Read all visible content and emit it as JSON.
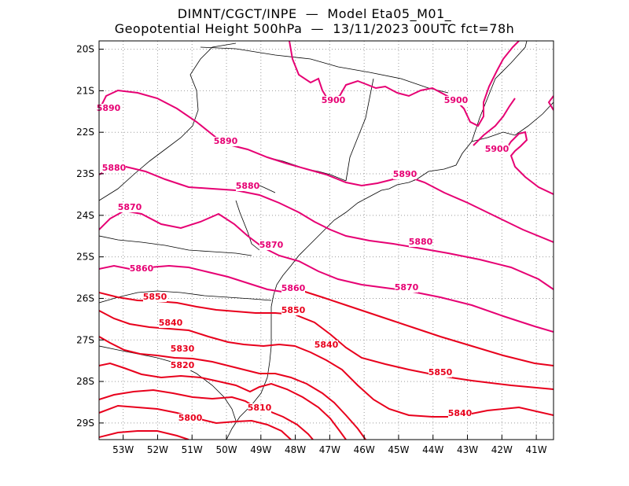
{
  "header": {
    "line1": "DIMNT/CGCT/INPE  —  Model Eta05_M01_",
    "line2": "Geopotential Height 500hPa  —  13/11/2023 00UTC fct=78h"
  },
  "chart_data": {
    "type": "contour-map",
    "title": "Geopotential Height 500hPa",
    "model": "Eta05_M01_",
    "init": "13/11/2023 00UTC",
    "forecast": "fct=78h",
    "x_ticks": [
      "53W",
      "52W",
      "51W",
      "50W",
      "49W",
      "48W",
      "47W",
      "46W",
      "45W",
      "44W",
      "43W",
      "42W",
      "41W"
    ],
    "y_ticks": [
      "20S",
      "21S",
      "22S",
      "23S",
      "24S",
      "25S",
      "26S",
      "27S",
      "28S",
      "29S"
    ],
    "lon_range": [
      -53.7,
      -40.5
    ],
    "lat_range": [
      -29.4,
      -19.8
    ],
    "contour_labels": [
      "5890",
      "5900",
      "5900",
      "5900",
      "5890",
      "5880",
      "5880",
      "5890",
      "5870",
      "5880",
      "5870",
      "5860",
      "5860",
      "5850",
      "5850",
      "5870",
      "5840",
      "5840",
      "5830",
      "5820",
      "5850",
      "5810",
      "5800",
      "5840"
    ],
    "colors": {
      "high": "#e60073",
      "low": "#e8001c",
      "grid": "#9a9a9a",
      "coast": "#000000"
    }
  }
}
